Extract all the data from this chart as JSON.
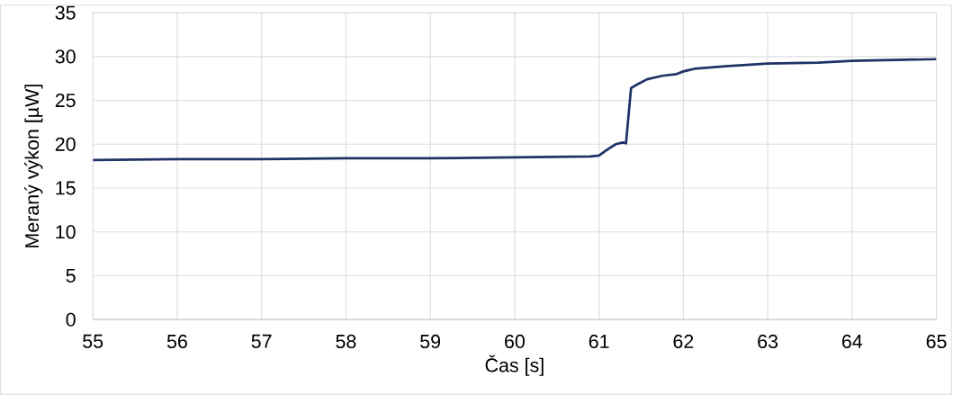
{
  "chart_data": {
    "type": "line",
    "xlabel": "Čas [s]",
    "ylabel": "Meraný výkon [µW]",
    "x": [
      55,
      56,
      57,
      58,
      59,
      60,
      60.9,
      61.0,
      61.1,
      61.2,
      61.28,
      61.32,
      61.38,
      61.45,
      61.57,
      61.75,
      61.92,
      62.0,
      62.13,
      62.5,
      63.0,
      63.6,
      64.0,
      64.5,
      65
    ],
    "series": [
      {
        "color": "#1f3266",
        "values": [
          18.2,
          18.3,
          18.3,
          18.4,
          18.4,
          18.5,
          18.6,
          18.7,
          19.4,
          20.0,
          20.2,
          20.1,
          26.4,
          26.8,
          27.4,
          27.8,
          28.0,
          28.3,
          28.6,
          28.9,
          29.2,
          29.3,
          29.5,
          29.6,
          29.7
        ]
      }
    ],
    "xlim": [
      55,
      65
    ],
    "ylim": [
      0,
      35
    ],
    "xticks": [
      55,
      56,
      57,
      58,
      59,
      60,
      61,
      62,
      63,
      64,
      65
    ],
    "yticks": [
      0,
      5,
      10,
      15,
      20,
      25,
      30,
      35
    ],
    "grid": true,
    "marker": "none",
    "line_style": "solid"
  }
}
